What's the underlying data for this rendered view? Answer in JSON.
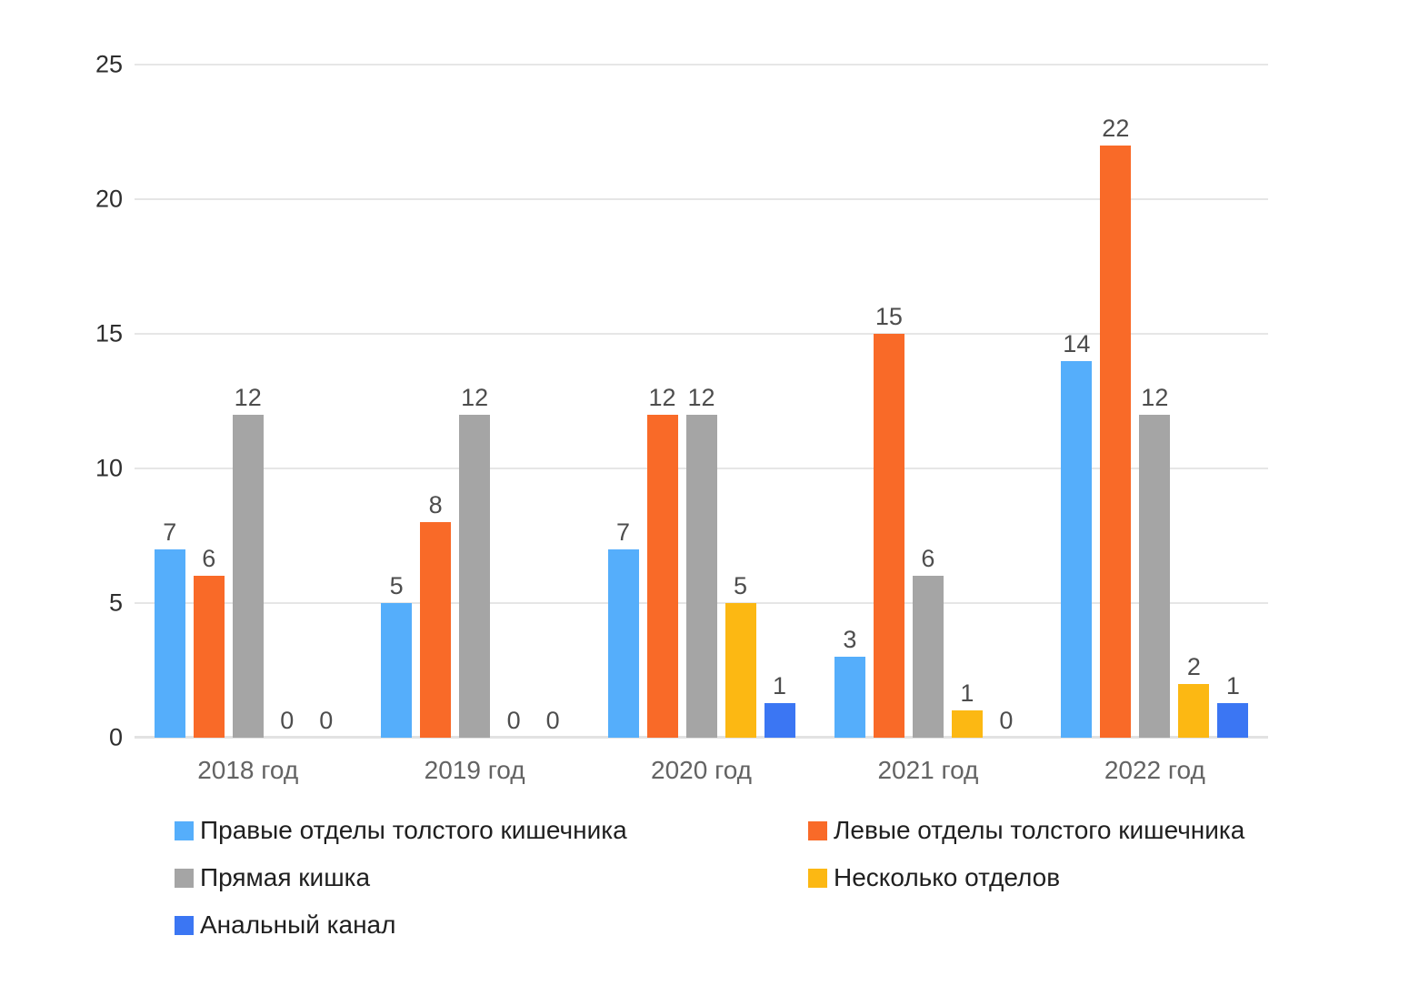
{
  "chart": {
    "background_color": "#ffffff",
    "gridline_color": "#e6e6e6",
    "baseline_color": "#e2e2e2",
    "ytick_label_color": "#2e2e2e",
    "xtick_label_color": "#636363",
    "value_label_color": "#4d4d4d",
    "legend_text_color": "#1f1f1f"
  },
  "chart_data": {
    "type": "bar",
    "title": "",
    "categories": [
      "2018 год",
      "2019 год",
      "2020 год",
      "2021 год",
      "2022 год"
    ],
    "series": [
      {
        "name": "Правые отделы толстого кишечника",
        "color": "#55AEFB",
        "values": [
          7,
          5,
          7,
          3,
          14
        ]
      },
      {
        "name": "Левые отделы толстого кишечника",
        "color": "#F96A28",
        "values": [
          6,
          8,
          12,
          15,
          22
        ]
      },
      {
        "name": "Прямая кишка",
        "color": "#A5A5A5",
        "values": [
          12,
          12,
          12,
          6,
          12
        ]
      },
      {
        "name": "Несколько отделов",
        "color": "#FCB813",
        "values": [
          0,
          0,
          5,
          1,
          2
        ]
      },
      {
        "name": "Анальный канал",
        "color": "#3B76F3",
        "values": [
          0,
          0,
          1,
          0,
          1
        ],
        "display_values": [
          0,
          0,
          1.3,
          0,
          1.3
        ]
      }
    ],
    "ylim": [
      0,
      25
    ],
    "yticks": [
      0,
      5,
      10,
      15,
      20,
      25
    ],
    "grid": true,
    "value_labels": true,
    "legend_position": "bottom",
    "legend_columns": 2
  }
}
